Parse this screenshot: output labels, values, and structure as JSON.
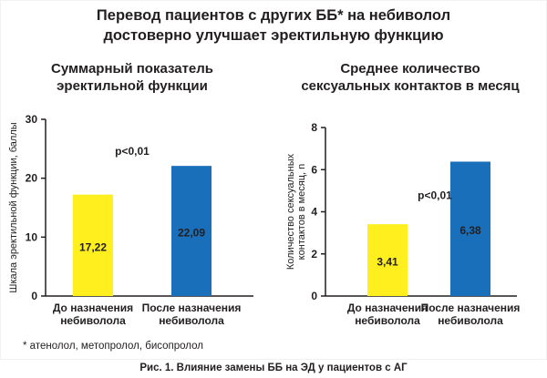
{
  "title_line1": "Перевод пациентов с других ББ* на небиволол",
  "title_line2": "достоверно улучшает эректильную функцию",
  "footnote": "* атенолол, метопролол, бисопролол",
  "caption": "Рис. 1. Влияние замены ББ на ЭД у пациентов с АГ",
  "colors": {
    "before": "#ffef1f",
    "after": "#1a6fbb",
    "axis": "#231f20"
  },
  "chart_data": [
    {
      "type": "bar",
      "title_line1": "Суммарный показатель",
      "title_line2": "эректильной функции",
      "ylabel": "Шкала эректильной функции, баллы",
      "ylim": [
        0,
        30
      ],
      "yticks": [
        0,
        10,
        20,
        30
      ],
      "categories": [
        {
          "line1": "До назначения",
          "line2": "небиволола"
        },
        {
          "line1": "После назначения",
          "line2": "небиволола"
        }
      ],
      "values": [
        17.22,
        22.09
      ],
      "value_labels": [
        "17,22",
        "22,09"
      ],
      "annotation": "p<0,01",
      "annotation_y": 24
    },
    {
      "type": "bar",
      "title_line1": "Среднее количество",
      "title_line2": "сексуальных контактов в месяц",
      "ylabel_line1": "Количество сексуальных",
      "ylabel_line2": "контактов в месяц, n",
      "ylim": [
        0,
        8
      ],
      "yticks": [
        0,
        2,
        4,
        6,
        8
      ],
      "categories": [
        {
          "line1": "До назначения",
          "line2": "небиволола"
        },
        {
          "line1": "После назначения",
          "line2": "небиволола"
        }
      ],
      "values": [
        3.41,
        6.38
      ],
      "value_labels": [
        "3,41",
        "6,38"
      ],
      "annotation": "p<0,01",
      "annotation_y": 4.6
    }
  ]
}
